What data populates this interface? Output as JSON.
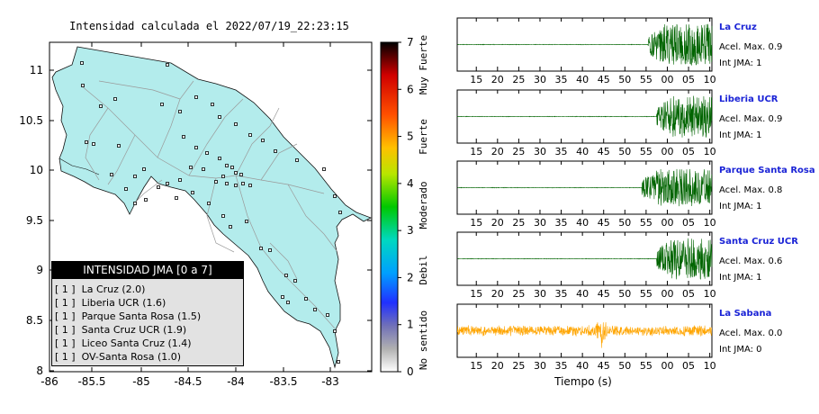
{
  "map": {
    "title": "Intensidad calculada el 2022/07/19_22:23:15",
    "x_ticks": [
      "-86",
      "-85.5",
      "-85",
      "-84.5",
      "-84",
      "-83.5",
      "-83"
    ],
    "y_ticks": [
      "11",
      "10.5",
      "10",
      "9.5",
      "9",
      "8.5",
      "8"
    ],
    "land_color": "#b3ecec"
  },
  "scale": {
    "ticks": [
      "7",
      "6",
      "5",
      "4",
      "3",
      "2",
      "1",
      "0"
    ],
    "categories": [
      "Muy Fuerte",
      "Fuerte",
      "Moderado",
      "Debil",
      "No sentido"
    ]
  },
  "legend": {
    "title": "INTENSIDAD JMA [0 a 7]",
    "items": [
      {
        "level": "[ 1 ]",
        "station": "La Cruz (2.0)"
      },
      {
        "level": "[ 1 ]",
        "station": "Liberia UCR (1.6)"
      },
      {
        "level": "[ 1 ]",
        "station": "Parque Santa Rosa (1.5)"
      },
      {
        "level": "[ 1 ]",
        "station": "Santa Cruz UCR (1.9)"
      },
      {
        "level": "[ 1 ]",
        "station": "Liceo Santa Cruz (1.4)"
      },
      {
        "level": "[ 1 ]",
        "station": "OV-Santa Rosa (1.0)"
      }
    ]
  },
  "seismograms": {
    "time_ticks": [
      "15",
      "20",
      "25",
      "30",
      "35",
      "40",
      "45",
      "50",
      "55",
      "00",
      "05",
      "10"
    ],
    "xlabel": "Tiempo (s)",
    "stations": [
      {
        "name": "La Cruz",
        "acel": "Acel. Max. 0.9",
        "int": "Int JMA: 1",
        "color": "#006400",
        "onset": 55.5,
        "amp": 0.85
      },
      {
        "name": "Liberia UCR",
        "acel": "Acel. Max. 0.9",
        "int": "Int JMA: 1",
        "color": "#006400",
        "onset": 57.5,
        "amp": 0.85
      },
      {
        "name": "Parque Santa Rosa",
        "acel": "Acel. Max. 0.8",
        "int": "Int JMA: 1",
        "color": "#006400",
        "onset": 54.0,
        "amp": 0.75
      },
      {
        "name": "Santa Cruz UCR",
        "acel": "Acel. Max. 0.6",
        "int": "Int JMA: 1",
        "color": "#006400",
        "onset": 57.5,
        "amp": 0.85
      },
      {
        "name": "La Sabana",
        "acel": "Acel. Max. 0.0",
        "int": "Int JMA: 0",
        "color": "#ffa500",
        "onset": 12.0,
        "amp": 0.3
      }
    ]
  },
  "chart_data": [
    {
      "type": "scatter",
      "title": "Intensidad calculada el 2022/07/19_22:23:15",
      "xlim": [
        -86,
        -82.6
      ],
      "ylim": [
        8,
        11.3
      ],
      "x_ticks": [
        -86,
        -85.5,
        -85,
        -84.5,
        -84,
        -83.5,
        -83
      ],
      "y_ticks": [
        8,
        8.5,
        9,
        9.5,
        10,
        10.5,
        11
      ],
      "colorbar": {
        "range": [
          0,
          7
        ],
        "labels": [
          "No sentido",
          "Debil",
          "Moderado",
          "Fuerte",
          "Muy Fuerte"
        ]
      }
    },
    {
      "type": "line",
      "xlabel": "Tiempo (s)",
      "x_range_seconds": [
        10.5,
        70.5
      ],
      "series": [
        {
          "name": "La Cruz",
          "acel_max": 0.9,
          "int_jma": 1
        },
        {
          "name": "Liberia UCR",
          "acel_max": 0.9,
          "int_jma": 1
        },
        {
          "name": "Parque Santa Rosa",
          "acel_max": 0.8,
          "int_jma": 1
        },
        {
          "name": "Santa Cruz UCR",
          "acel_max": 0.6,
          "int_jma": 1
        },
        {
          "name": "La Sabana",
          "acel_max": 0.0,
          "int_jma": 0
        }
      ]
    }
  ]
}
